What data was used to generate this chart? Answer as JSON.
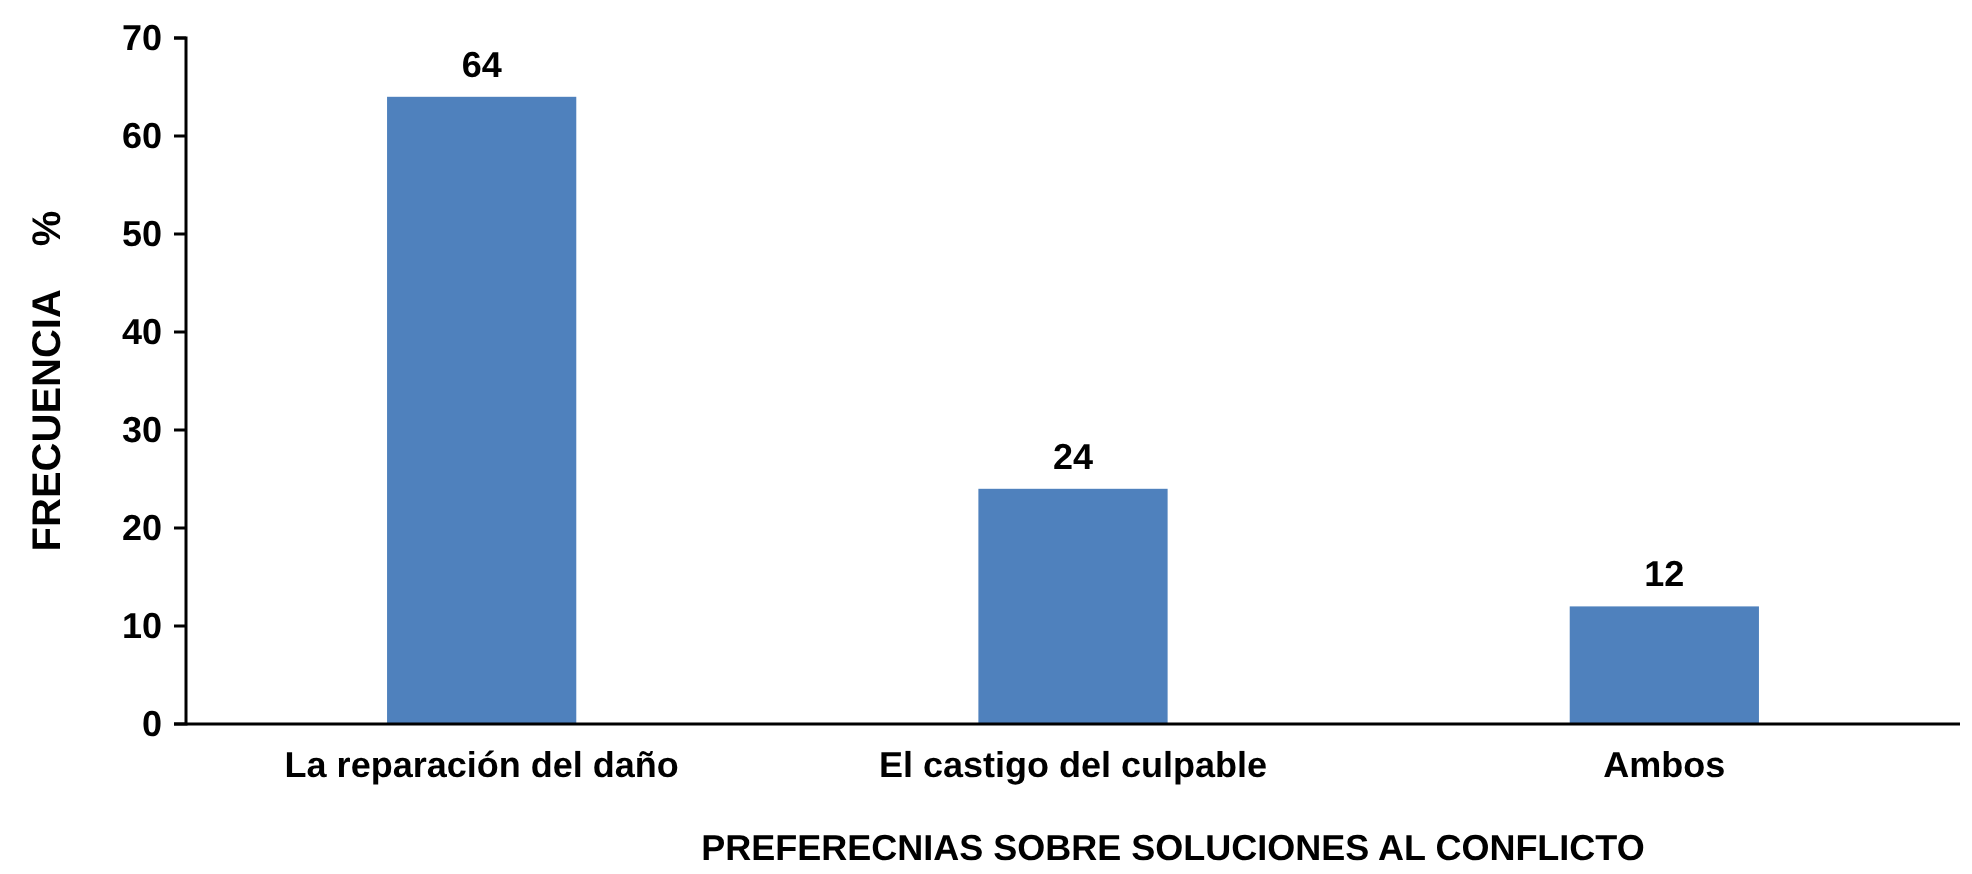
{
  "chart_data": {
    "type": "bar",
    "xlabel": "PREFERECNIAS SOBRE SOLUCIONES AL CONFLICTO",
    "ylabel": "FRECUENCIA    %",
    "categories": [
      "La reparación del daño",
      "El castigo del culpable",
      "Ambos"
    ],
    "values": [
      64,
      24,
      12
    ],
    "color": "#4f81bd",
    "ylim": [
      0,
      70
    ],
    "yticks": [
      0,
      10,
      20,
      30,
      40,
      50,
      60,
      70
    ],
    "data_labels": true
  }
}
